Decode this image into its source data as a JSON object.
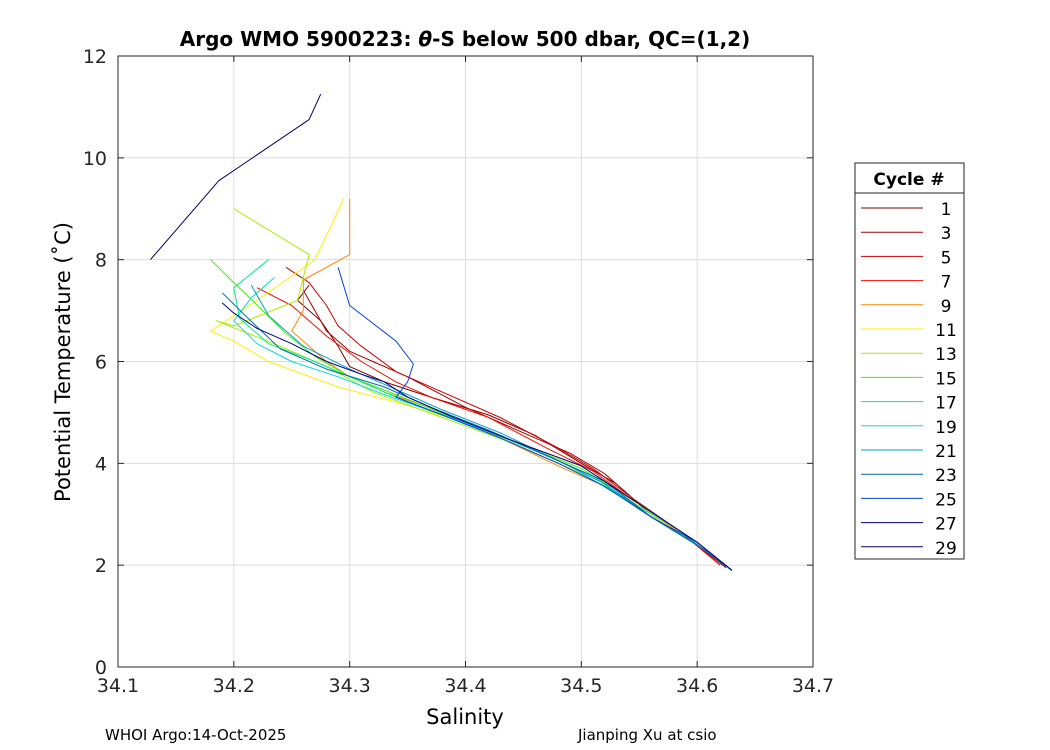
{
  "chart_data": {
    "type": "line",
    "title_prefix": "Argo WMO 5900223: ",
    "title_theta": "θ",
    "title_suffix": "-S below 500 dbar,  QC=(1,2)",
    "xlabel": "Salinity",
    "ylabel": "Potential Temperature (˚C)",
    "xlim": [
      34.1,
      34.7
    ],
    "ylim": [
      0,
      12
    ],
    "xticks": [
      "34.1",
      "34.2",
      "34.3",
      "34.4",
      "34.5",
      "34.6",
      "34.7"
    ],
    "yticks": [
      "0",
      "2",
      "4",
      "6",
      "8",
      "10",
      "12"
    ],
    "grid": true,
    "legend_title": "Cycle #",
    "legend_position": "right",
    "series": [
      {
        "name": "1",
        "color": "#800000",
        "x": [
          34.265,
          34.255,
          34.275,
          34.29,
          34.3,
          34.33,
          34.37,
          34.42,
          34.46,
          34.5,
          34.53,
          34.56,
          34.6,
          34.625
        ],
        "y": [
          7.5,
          7.2,
          6.8,
          6.3,
          5.9,
          5.6,
          5.3,
          4.95,
          4.55,
          4.0,
          3.6,
          3.0,
          2.4,
          1.95
        ]
      },
      {
        "name": "3",
        "color": "#aa0000",
        "x": [
          34.26,
          34.28,
          34.3,
          34.32,
          34.35,
          34.4,
          34.45,
          34.49,
          34.52,
          34.55,
          34.59,
          34.62
        ],
        "y": [
          7.4,
          6.6,
          6.2,
          6.0,
          5.7,
          5.1,
          4.6,
          4.2,
          3.8,
          3.2,
          2.6,
          2.0
        ]
      },
      {
        "name": "5",
        "color": "#cc0000",
        "x": [
          34.245,
          34.265,
          34.28,
          34.29,
          34.31,
          34.34,
          34.38,
          34.43,
          34.48,
          34.51,
          34.545,
          34.58,
          34.62
        ],
        "y": [
          7.85,
          7.55,
          7.1,
          6.7,
          6.3,
          5.8,
          5.4,
          4.9,
          4.3,
          3.9,
          3.3,
          2.75,
          2.05
        ]
      },
      {
        "name": "7",
        "color": "#ee1100",
        "x": [
          34.22,
          34.25,
          34.28,
          34.31,
          34.34,
          34.37,
          34.42,
          34.47,
          34.51,
          34.54,
          34.58,
          34.62
        ],
        "y": [
          7.45,
          7.1,
          6.5,
          6.0,
          5.6,
          5.3,
          4.9,
          4.3,
          3.85,
          3.35,
          2.75,
          2.0
        ]
      },
      {
        "name": "9",
        "color": "#ff8800",
        "x": [
          34.3,
          34.3,
          34.26,
          34.26,
          34.25,
          34.28,
          34.3,
          34.33,
          34.38,
          34.43,
          34.48,
          34.52,
          34.56,
          34.6
        ],
        "y": [
          9.2,
          8.1,
          7.6,
          7.0,
          6.6,
          6.0,
          5.7,
          5.4,
          5.0,
          4.5,
          3.95,
          3.55,
          3.0,
          2.45
        ]
      },
      {
        "name": "11",
        "color": "#ffee00",
        "x": [
          34.295,
          34.27,
          34.22,
          34.18,
          34.2,
          34.23,
          34.29,
          34.34,
          34.4,
          34.45,
          34.5,
          34.55,
          34.59
        ],
        "y": [
          9.2,
          8.0,
          7.2,
          6.6,
          6.4,
          6.0,
          5.5,
          5.2,
          4.8,
          4.3,
          3.8,
          3.15,
          2.55
        ]
      },
      {
        "name": "13",
        "color": "#aaee00",
        "x": [
          34.2,
          34.265,
          34.255,
          34.2,
          34.185,
          34.24,
          34.28,
          34.32,
          34.38,
          34.44,
          34.5,
          34.54,
          34.58
        ],
        "y": [
          9.0,
          8.1,
          7.2,
          6.7,
          6.8,
          6.3,
          5.9,
          5.4,
          4.9,
          4.4,
          3.8,
          3.3,
          2.75
        ]
      },
      {
        "name": "15",
        "color": "#44ee00",
        "x": [
          34.18,
          34.2,
          34.225,
          34.245,
          34.27,
          34.3,
          34.34,
          34.4,
          34.45,
          34.5,
          34.55,
          34.6
        ],
        "y": [
          8.0,
          7.55,
          7.0,
          6.55,
          6.1,
          5.7,
          5.35,
          4.8,
          4.35,
          3.9,
          3.2,
          2.45
        ]
      },
      {
        "name": "17",
        "color": "#00ee88",
        "x": [
          34.23,
          34.2,
          34.205,
          34.23,
          34.27,
          34.31,
          34.35,
          34.4,
          34.46,
          34.51,
          34.55,
          34.6,
          34.63
        ],
        "y": [
          8.0,
          7.45,
          6.85,
          6.35,
          6.0,
          5.6,
          5.2,
          4.8,
          4.25,
          3.75,
          3.1,
          2.4,
          1.9
        ]
      },
      {
        "name": "19",
        "color": "#00dddd",
        "x": [
          34.235,
          34.215,
          34.2,
          34.22,
          34.25,
          34.29,
          34.33,
          34.38,
          34.44,
          34.49,
          34.53,
          34.58,
          34.63
        ],
        "y": [
          7.65,
          7.25,
          6.8,
          6.35,
          6.0,
          5.7,
          5.35,
          4.95,
          4.45,
          3.95,
          3.4,
          2.75,
          1.9
        ]
      },
      {
        "name": "21",
        "color": "#00a0cc",
        "x": [
          34.215,
          34.23,
          34.26,
          34.3,
          34.34,
          34.38,
          34.43,
          34.48,
          34.52,
          34.56,
          34.61,
          34.63
        ],
        "y": [
          7.5,
          6.9,
          6.3,
          5.85,
          5.45,
          5.05,
          4.6,
          4.05,
          3.6,
          2.95,
          2.25,
          1.9
        ]
      },
      {
        "name": "23",
        "color": "#0066aa",
        "x": [
          34.19,
          34.21,
          34.24,
          34.28,
          34.33,
          34.37,
          34.42,
          34.47,
          34.52,
          34.56,
          34.6,
          34.63
        ],
        "y": [
          7.35,
          6.9,
          6.25,
          5.85,
          5.5,
          5.1,
          4.65,
          4.15,
          3.65,
          2.95,
          2.4,
          1.9
        ]
      },
      {
        "name": "25",
        "color": "#0044dd",
        "x": [
          34.29,
          34.3,
          34.34,
          34.355,
          34.35,
          34.34,
          34.38,
          34.43,
          34.48,
          34.52,
          34.56,
          34.6,
          34.63
        ],
        "y": [
          7.85,
          7.1,
          6.4,
          5.95,
          5.6,
          5.3,
          4.95,
          4.5,
          4.0,
          3.55,
          2.95,
          2.45,
          1.9
        ]
      },
      {
        "name": "27",
        "color": "#000088",
        "x": [
          34.19,
          34.2,
          34.22,
          34.25,
          34.28,
          34.31,
          34.33,
          34.35,
          34.39,
          34.44,
          34.5,
          34.55,
          34.6,
          34.63
        ],
        "y": [
          7.15,
          6.95,
          6.65,
          6.35,
          6.0,
          5.75,
          5.6,
          5.3,
          4.9,
          4.45,
          3.95,
          3.2,
          2.45,
          1.9
        ]
      },
      {
        "name": "29",
        "color": "#000066",
        "x": [
          34.128,
          34.187,
          34.265,
          34.275
        ],
        "y": [
          8.0,
          9.55,
          10.75,
          11.25
        ]
      }
    ],
    "footer_left": "WHOI Argo:14-Oct-2025",
    "footer_right": "Jianping Xu at csio"
  }
}
